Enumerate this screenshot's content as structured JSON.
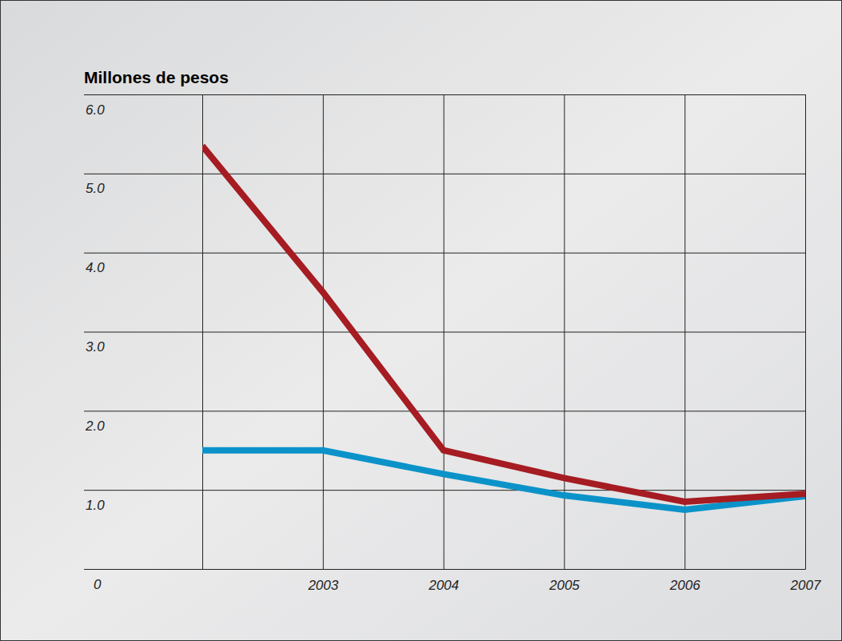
{
  "chart_data": {
    "type": "line",
    "title": "Millones de pesos",
    "categories": [
      null,
      "2003",
      "2004",
      "2005",
      "2006",
      "2007"
    ],
    "series": [
      {
        "color": "#a51c22",
        "values": [
          5.35,
          3.5,
          1.5,
          1.15,
          0.85,
          0.95
        ]
      },
      {
        "color": "#0b93c9",
        "values": [
          1.5,
          1.5,
          1.2,
          0.93,
          0.75,
          0.92
        ]
      }
    ],
    "ylim": [
      0,
      6
    ],
    "yticks": [
      0,
      {
        "value": 1,
        "label": "1.0"
      },
      {
        "value": 2,
        "label": "2.0"
      },
      {
        "value": 3,
        "label": "3.0"
      },
      {
        "value": 4,
        "label": "4.0"
      },
      {
        "value": 5,
        "label": "5.0"
      },
      {
        "value": 6,
        "label": "6.0"
      }
    ],
    "grid": true
  }
}
